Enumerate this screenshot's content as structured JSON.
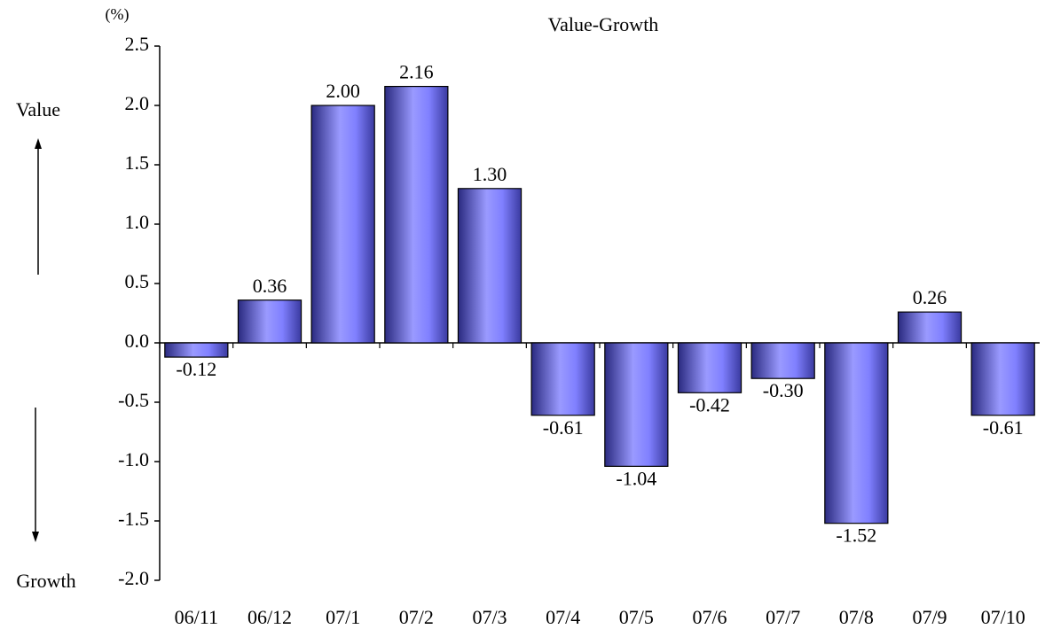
{
  "chart_data": {
    "type": "bar",
    "title": "Value-Growth",
    "unit_label": "(%)",
    "annotations": [
      "Value",
      "Growth"
    ],
    "categories": [
      "06/11",
      "06/12",
      "07/1",
      "07/2",
      "07/3",
      "07/4",
      "07/5",
      "07/6",
      "07/7",
      "07/8",
      "07/9",
      "07/10"
    ],
    "values": [
      -0.12,
      0.36,
      2.0,
      2.16,
      1.3,
      -0.61,
      -1.04,
      -0.42,
      -0.3,
      -1.52,
      0.26,
      -0.61
    ],
    "value_labels": [
      "-0.12",
      "0.36",
      "2.00",
      "2.16",
      "1.30",
      "-0.61",
      "-1.04",
      "-0.42",
      "-0.30",
      "-1.52",
      "0.26",
      "-0.61"
    ],
    "color": "#8080ff",
    "ylim": [
      -2,
      2.5
    ],
    "yticks": [
      2.5,
      {
        "value": 2,
        "label": "2.0"
      },
      1.5,
      {
        "value": 1,
        "label": "1.0"
      },
      0.5,
      {
        "value": 0,
        "label": "0.0"
      },
      -0.5,
      {
        "value": -1,
        "label": "-1.0"
      },
      -1.5,
      {
        "value": -2,
        "label": "-2.0"
      }
    ],
    "grid": false
  }
}
